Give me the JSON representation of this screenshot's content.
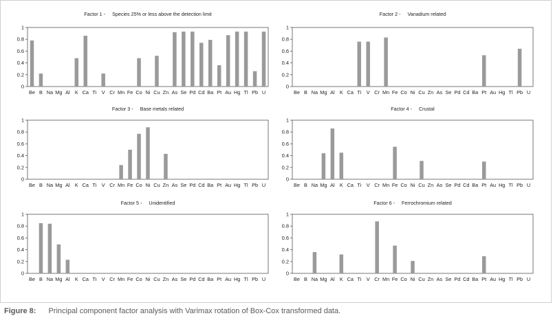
{
  "caption": {
    "label": "Figure 8:",
    "text": "Principal component factor analysis with Varimax rotation of Box-Cox transformed data."
  },
  "colors": {
    "bar": "#9a9a9a",
    "axis": "#555555",
    "text": "#222222"
  },
  "chart_data": [
    {
      "type": "bar",
      "factor": "Factor 1 -",
      "title": "Species 25% or less above the detection limit",
      "categories": [
        "Be",
        "B",
        "Na",
        "Mg",
        "Al",
        "K",
        "Ca",
        "Ti",
        "V",
        "Cr",
        "Mn",
        "Fe",
        "Co",
        "Ni",
        "Cu",
        "Zn",
        "As",
        "Se",
        "Pd",
        "Cd",
        "Ba",
        "Pt",
        "Au",
        "Hg",
        "Tl",
        "Pb",
        "U"
      ],
      "values": [
        0.78,
        0.22,
        0,
        0,
        0,
        0.48,
        0.86,
        0,
        0.22,
        0,
        0,
        0,
        0.48,
        0,
        0.52,
        0,
        0.92,
        0.93,
        0.93,
        0.74,
        0.79,
        0.36,
        0.87,
        0.93,
        0.93,
        0.26,
        0.93
      ],
      "ylim": [
        0,
        1
      ],
      "yticks": [
        "0",
        "0.2",
        "0.4",
        "0.6",
        "0.8",
        "1"
      ]
    },
    {
      "type": "bar",
      "factor": "Factor 2 -",
      "title": "Vanadium related",
      "categories": [
        "Be",
        "B",
        "Na",
        "Mg",
        "Al",
        "K",
        "Ca",
        "Ti",
        "V",
        "Cr",
        "Mn",
        "Fe",
        "Co",
        "Ni",
        "Cu",
        "Zn",
        "As",
        "Se",
        "Pd",
        "Cd",
        "Ba",
        "Pt",
        "Au",
        "Hg",
        "Tl",
        "Pb",
        "U"
      ],
      "values": [
        0,
        0,
        0,
        0,
        0,
        0,
        0,
        0.76,
        0.76,
        0,
        0.83,
        0,
        0,
        0,
        0,
        0,
        0,
        0,
        0,
        0,
        0,
        0.53,
        0,
        0,
        0,
        0.64,
        0
      ],
      "ylim": [
        0,
        1
      ],
      "yticks": [
        "0",
        "0.2",
        "0.4",
        "0.6",
        "0.8",
        "1"
      ]
    },
    {
      "type": "bar",
      "factor": "Factor 3 -",
      "title": "Base metals related",
      "categories": [
        "Be",
        "B",
        "Na",
        "Mg",
        "Al",
        "K",
        "Ca",
        "Ti",
        "V",
        "Cr",
        "Mn",
        "Fe",
        "Co",
        "Ni",
        "Cu",
        "Zn",
        "As",
        "Se",
        "Pd",
        "Cd",
        "Ba",
        "Pt",
        "Au",
        "Hg",
        "Tl",
        "Pb",
        "U"
      ],
      "values": [
        0,
        0,
        0,
        0,
        0,
        0,
        0,
        0,
        0,
        0,
        0.24,
        0.5,
        0.77,
        0.88,
        0,
        0.43,
        0,
        0,
        0,
        0,
        0,
        0,
        0,
        0,
        0,
        0,
        0
      ],
      "ylim": [
        0,
        1
      ],
      "yticks": [
        "0",
        "0.2",
        "0.4",
        "0.6",
        "0.8",
        "1"
      ]
    },
    {
      "type": "bar",
      "factor": "Factor 4 -",
      "title": "Crustal",
      "categories": [
        "Be",
        "B",
        "Na",
        "Mg",
        "Al",
        "K",
        "Ca",
        "Ti",
        "V",
        "Cr",
        "Mn",
        "Fe",
        "Co",
        "Ni",
        "Cu",
        "Zn",
        "As",
        "Se",
        "Pd",
        "Cd",
        "Ba",
        "Pt",
        "Au",
        "Hg",
        "Tl",
        "Pb",
        "U"
      ],
      "values": [
        0,
        0,
        0,
        0.44,
        0.86,
        0.45,
        0,
        0,
        0,
        0,
        0,
        0.55,
        0,
        0,
        0.31,
        0,
        0,
        0,
        0,
        0,
        0,
        0.3,
        0,
        0,
        0,
        0,
        0
      ],
      "ylim": [
        0,
        1
      ],
      "yticks": [
        "0",
        "0.2",
        "0.4",
        "0.6",
        "0.8",
        "1"
      ]
    },
    {
      "type": "bar",
      "factor": "Factor 5 -",
      "title": "Unidentified",
      "categories": [
        "Be",
        "B",
        "Na",
        "Mg",
        "Al",
        "K",
        "Ca",
        "Ti",
        "V",
        "Cr",
        "Mn",
        "Fe",
        "Co",
        "Ni",
        "Cu",
        "Zn",
        "As",
        "Se",
        "Pd",
        "Cd",
        "Ba",
        "Pt",
        "Au",
        "Hg",
        "Tl",
        "Pb",
        "U"
      ],
      "values": [
        0,
        0.85,
        0.84,
        0.49,
        0.23,
        0,
        0,
        0,
        0,
        0,
        0,
        0,
        0,
        0,
        0,
        0,
        0,
        0,
        0,
        0,
        0,
        0,
        0,
        0,
        0,
        0,
        0
      ],
      "ylim": [
        0,
        1
      ],
      "yticks": [
        "0",
        "0.2",
        "0.4",
        "0.6",
        "0.8",
        "1"
      ]
    },
    {
      "type": "bar",
      "factor": "Factor 6 -",
      "title": "Ferrochromium related",
      "categories": [
        "Be",
        "B",
        "Na",
        "Mg",
        "Al",
        "K",
        "Ca",
        "Ti",
        "V",
        "Cr",
        "Mn",
        "Fe",
        "Co",
        "Ni",
        "Cu",
        "Zn",
        "As",
        "Se",
        "Pd",
        "Cd",
        "Ba",
        "Pt",
        "Au",
        "Hg",
        "Tl",
        "Pb",
        "U"
      ],
      "values": [
        0,
        0,
        0.36,
        0,
        0,
        0.32,
        0,
        0,
        0,
        0.88,
        0,
        0.47,
        0,
        0.21,
        0,
        0,
        0,
        0,
        0,
        0,
        0,
        0.29,
        0,
        0,
        0,
        0,
        0
      ],
      "ylim": [
        0,
        1
      ],
      "yticks": [
        "0",
        "0.2",
        "0.4",
        "0.6",
        "0.8",
        "1"
      ]
    }
  ]
}
